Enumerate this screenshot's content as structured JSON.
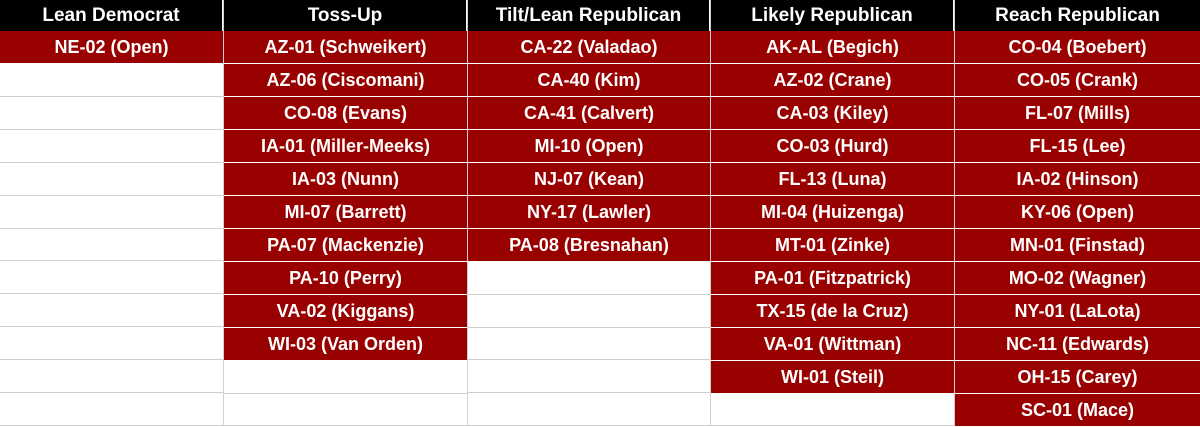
{
  "columns": [
    {
      "header": "Lean Democrat",
      "races": [
        "NE-02 (Open)"
      ]
    },
    {
      "header": "Toss-Up",
      "races": [
        "AZ-01 (Schweikert)",
        "AZ-06 (Ciscomani)",
        "CO-08 (Evans)",
        "IA-01 (Miller-Meeks)",
        "IA-03 (Nunn)",
        "MI-07 (Barrett)",
        "PA-07 (Mackenzie)",
        "PA-10 (Perry)",
        "VA-02 (Kiggans)",
        "WI-03 (Van Orden)"
      ]
    },
    {
      "header": "Tilt/Lean Republican",
      "races": [
        "CA-22 (Valadao)",
        "CA-40 (Kim)",
        "CA-41 (Calvert)",
        "MI-10 (Open)",
        "NJ-07 (Kean)",
        "NY-17 (Lawler)",
        "PA-08 (Bresnahan)"
      ]
    },
    {
      "header": "Likely Republican",
      "races": [
        "AK-AL (Begich)",
        "AZ-02 (Crane)",
        "CA-03 (Kiley)",
        "CO-03 (Hurd)",
        "FL-13 (Luna)",
        "MI-04 (Huizenga)",
        "MT-01 (Zinke)",
        "PA-01 (Fitzpatrick)",
        "TX-15 (de la Cruz)",
        "VA-01 (Wittman)",
        "WI-01 (Steil)"
      ]
    },
    {
      "header": "Reach Republican",
      "races": [
        "CO-04 (Boebert)",
        "CO-05 (Crank)",
        "FL-07 (Mills)",
        "FL-15 (Lee)",
        "IA-02 (Hinson)",
        "KY-06 (Open)",
        "MN-01 (Finstad)",
        "MO-02 (Wagner)",
        "NY-01 (LaLota)",
        "NC-11 (Edwards)",
        "OH-15 (Carey)",
        "SC-01 (Mace)"
      ]
    }
  ],
  "colors": {
    "header_bg": "#000000",
    "header_text": "#ffffff",
    "race_bg": "#990000",
    "race_text": "#ffffff"
  }
}
